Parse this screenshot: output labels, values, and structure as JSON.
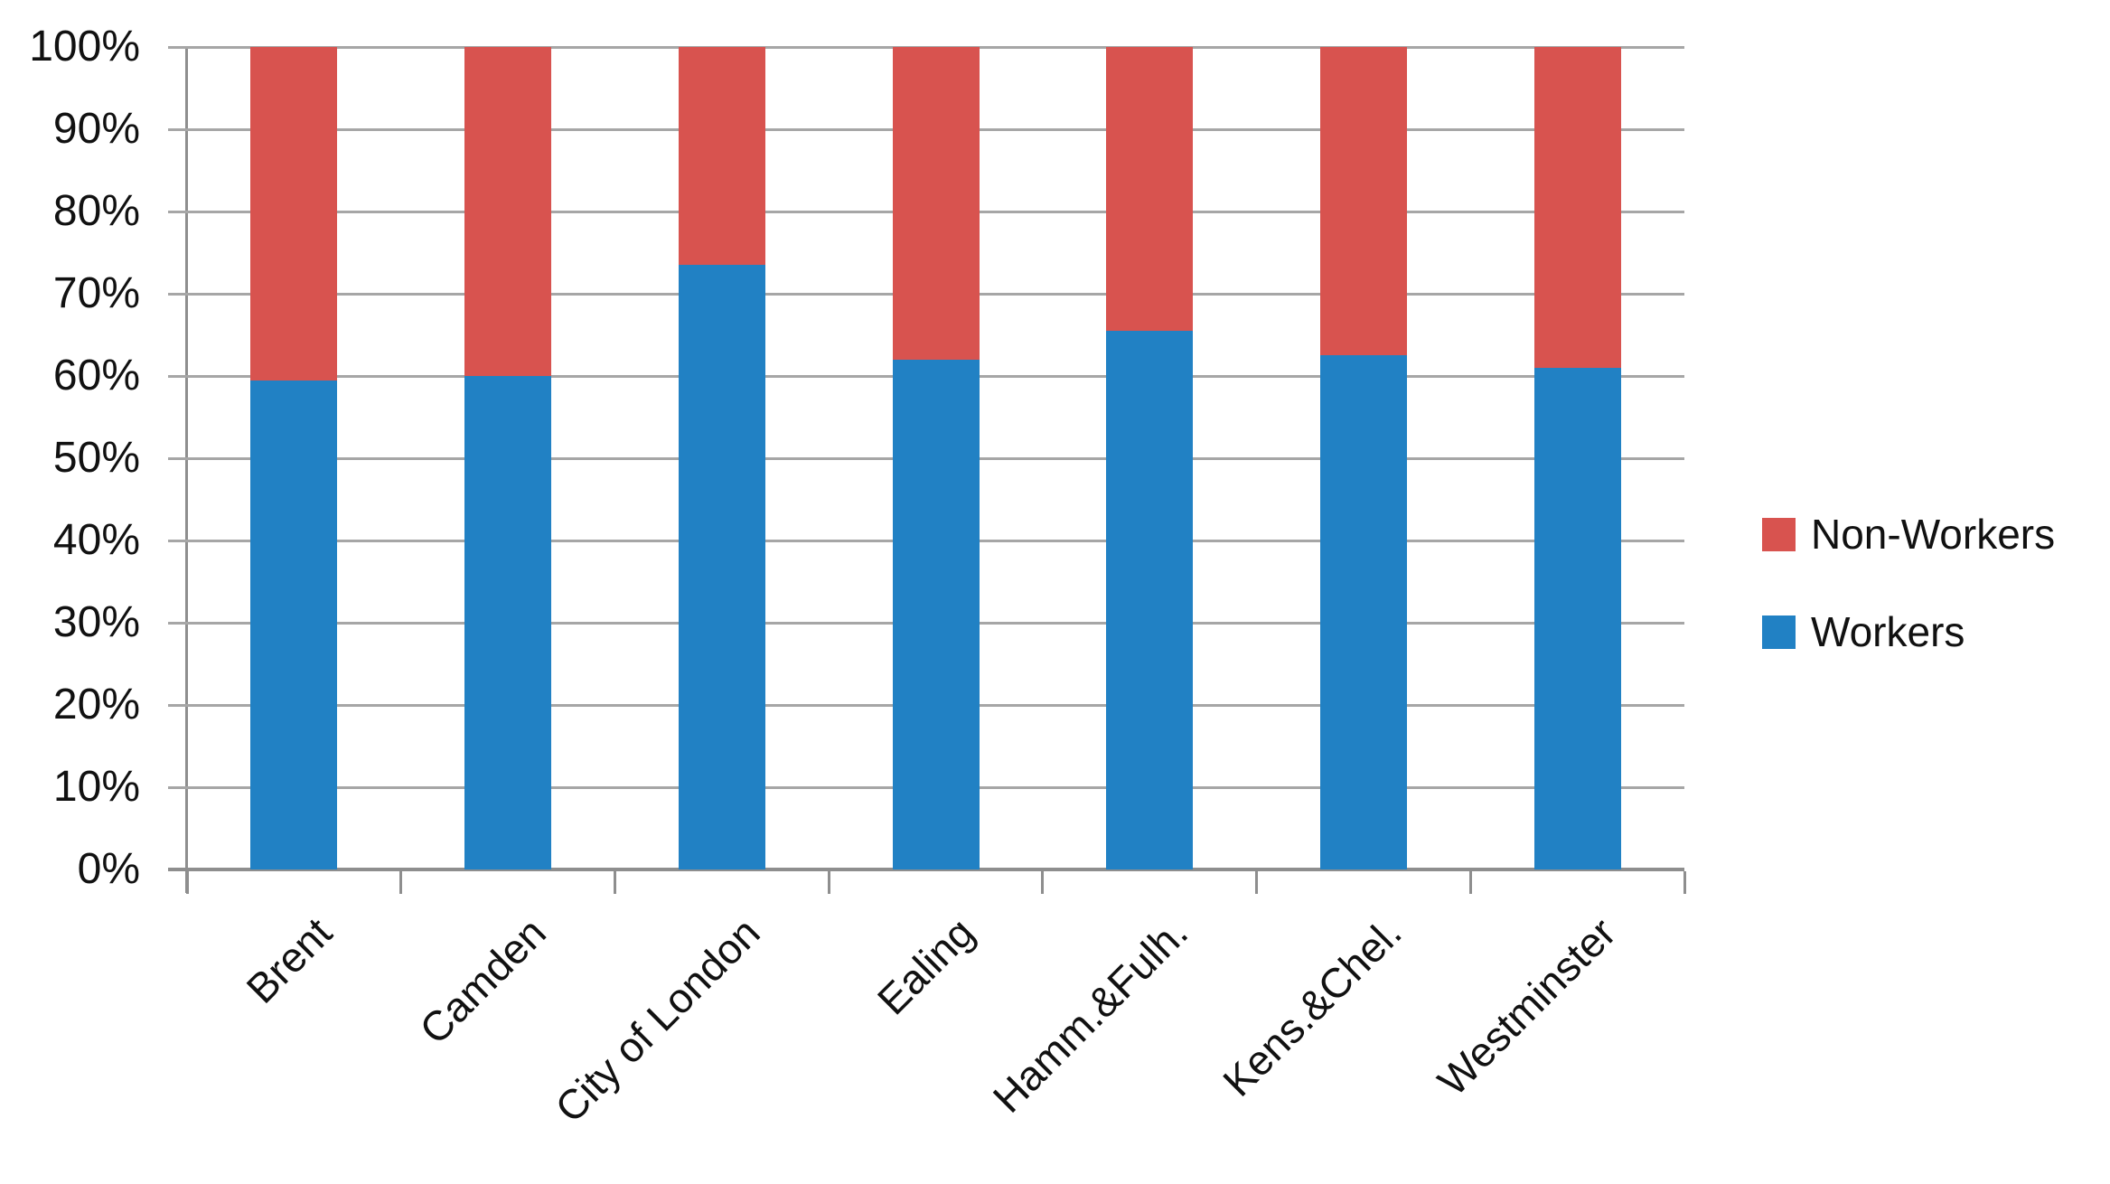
{
  "chart_data": {
    "type": "bar",
    "stacked": true,
    "orientation": "vertical",
    "categories": [
      "Brent",
      "Camden",
      "City of London",
      "Ealing",
      "Hamm.&Fulh.",
      "Kens.&Chel.",
      "Westminster"
    ],
    "series": [
      {
        "name": "Workers",
        "color": "#2181c4",
        "values": [
          59.5,
          60,
          73.5,
          62,
          65.5,
          62.5,
          61
        ]
      },
      {
        "name": "Non-Workers",
        "color": "#d8534f",
        "values": [
          40.5,
          40,
          26.5,
          38,
          34.5,
          37.5,
          39
        ]
      }
    ],
    "y_tick_labels": [
      "0%",
      "10%",
      "20%",
      "30%",
      "40%",
      "50%",
      "60%",
      "70%",
      "80%",
      "90%",
      "100%"
    ],
    "ylim": [
      0,
      100
    ],
    "y_step": 10,
    "grid": "horizontal",
    "legend_position": "right"
  },
  "legend": {
    "items": [
      {
        "label": "Non-Workers",
        "color": "#d8534f"
      },
      {
        "label": "Workers",
        "color": "#2181c4"
      }
    ]
  },
  "colors": {
    "gridline": "#a6a6a6",
    "axis": "#8e8e8e",
    "background": "#ffffff",
    "text": "#111111"
  }
}
